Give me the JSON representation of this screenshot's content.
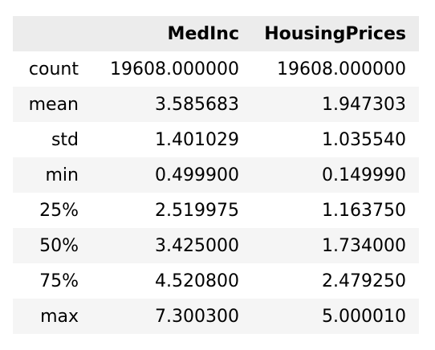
{
  "table": {
    "index_header": "",
    "columns": [
      "MedInc",
      "HousingPrices"
    ],
    "rows": [
      {
        "label": "count",
        "values": [
          "19608.000000",
          "19608.000000"
        ]
      },
      {
        "label": "mean",
        "values": [
          "3.585683",
          "1.947303"
        ]
      },
      {
        "label": "std",
        "values": [
          "1.401029",
          "1.035540"
        ]
      },
      {
        "label": "min",
        "values": [
          "0.499900",
          "0.149990"
        ]
      },
      {
        "label": "25%",
        "values": [
          "2.519975",
          "1.163750"
        ]
      },
      {
        "label": "50%",
        "values": [
          "3.425000",
          "1.734000"
        ]
      },
      {
        "label": "75%",
        "values": [
          "4.520800",
          "2.479250"
        ]
      },
      {
        "label": "max",
        "values": [
          "7.300300",
          "5.000010"
        ]
      }
    ]
  }
}
